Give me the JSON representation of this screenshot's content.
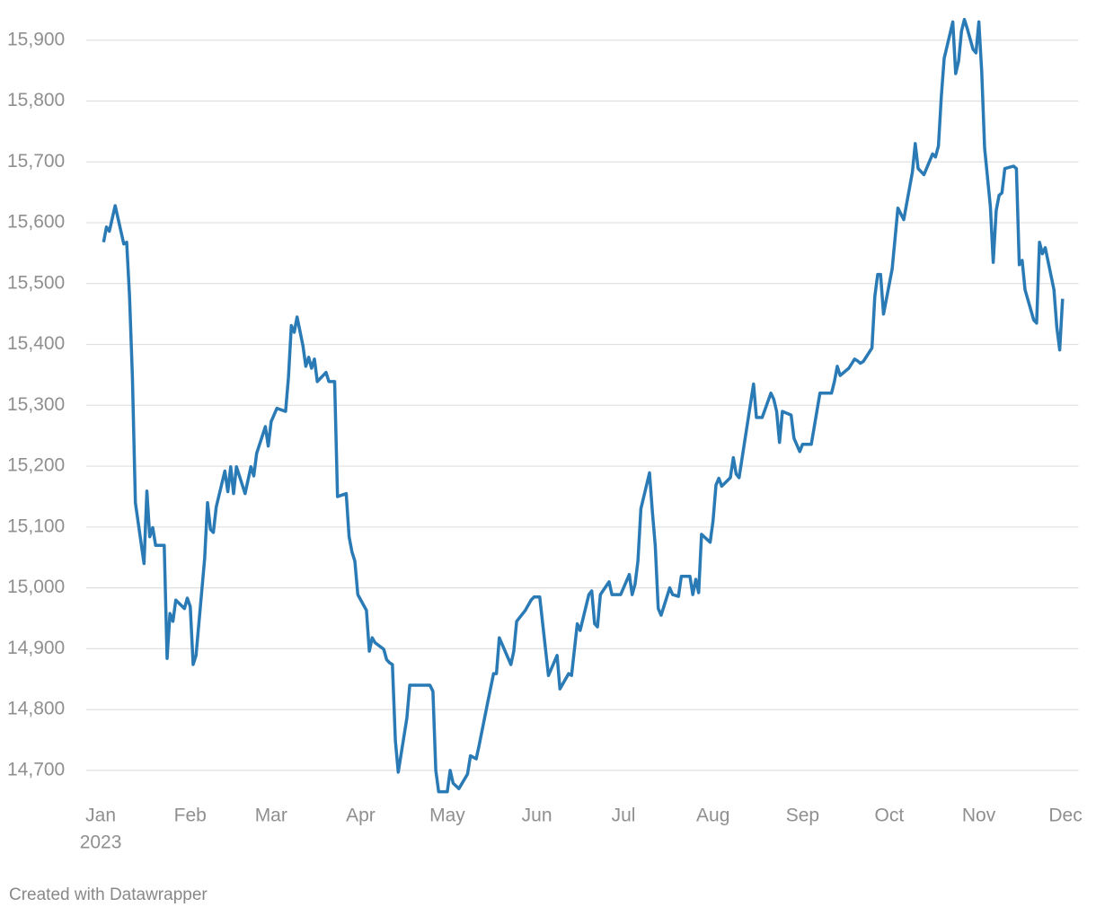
{
  "chart_data": {
    "type": "line",
    "x": [
      1,
      2,
      3,
      5,
      8,
      9,
      10,
      11,
      12,
      15,
      16,
      17,
      18,
      19,
      22,
      23,
      24,
      25,
      26,
      29,
      30,
      31,
      32,
      33,
      36,
      37,
      38,
      39,
      40,
      43,
      44,
      45,
      46,
      47,
      50,
      52,
      53,
      54,
      57,
      58,
      59,
      61,
      64,
      65,
      66,
      67,
      68,
      70,
      71,
      72,
      73,
      74,
      75,
      78,
      79,
      81,
      82,
      85,
      86,
      87,
      88,
      89,
      92,
      93,
      94,
      95,
      98,
      99,
      100,
      101,
      102,
      103,
      106,
      107,
      114,
      115,
      116,
      117,
      120,
      121,
      122,
      124,
      127,
      128,
      130,
      131,
      134,
      136,
      137,
      138,
      142,
      143,
      144,
      147,
      149,
      150,
      152,
      155,
      158,
      159,
      162,
      163,
      165,
      166,
      169,
      170,
      171,
      172,
      173,
      176,
      177,
      180,
      183,
      184,
      185,
      186,
      187,
      190,
      191,
      192,
      193,
      194,
      197,
      198,
      200,
      201,
      204,
      205,
      206,
      207,
      208,
      211,
      212,
      213,
      214,
      215,
      218,
      219,
      220,
      221,
      226,
      227,
      229,
      232,
      233,
      234,
      235,
      236,
      239,
      240,
      242,
      243,
      246,
      249,
      253,
      254,
      255,
      256,
      259,
      261,
      262,
      263,
      264,
      267,
      268,
      269,
      270,
      271,
      274,
      276,
      278,
      281,
      282,
      283,
      285,
      288,
      289,
      290,
      291,
      292,
      295,
      296,
      297,
      298,
      299,
      300,
      302,
      303,
      304,
      305,
      306,
      308,
      309,
      310,
      311,
      312,
      313,
      316,
      317,
      318,
      319,
      320,
      323,
      324,
      325,
      326,
      327,
      330,
      331,
      332,
      333
    ],
    "series": [
      {
        "color": "#2a7ab5",
        "values": [
          15568,
          15593,
          15586,
          15628,
          15565,
          15568,
          15479,
          15346,
          15140,
          15040,
          15159,
          15084,
          15099,
          15070,
          15070,
          14884,
          14958,
          14945,
          14980,
          14966,
          14983,
          14969,
          14874,
          14889,
          15048,
          15140,
          15096,
          15091,
          15133,
          15192,
          15158,
          15199,
          15155,
          15199,
          15155,
          15199,
          15184,
          15221,
          15265,
          15233,
          15273,
          15295,
          15290,
          15346,
          15431,
          15420,
          15445,
          15398,
          15364,
          15379,
          15361,
          15376,
          15339,
          15354,
          15339,
          15339,
          15150,
          15155,
          15084,
          15059,
          15044,
          14989,
          14963,
          14896,
          14918,
          14910,
          14899,
          14882,
          14877,
          14874,
          14749,
          14697,
          14786,
          14840,
          14840,
          14830,
          14700,
          14665,
          14665,
          14700,
          14679,
          14670,
          14694,
          14724,
          14719,
          14741,
          14812,
          14859,
          14859,
          14918,
          14874,
          14896,
          14945,
          14963,
          14980,
          14985,
          14985,
          14856,
          14889,
          14834,
          14859,
          14856,
          14941,
          14930,
          14989,
          14995,
          14941,
          14936,
          14989,
          15010,
          14989,
          14989,
          15022,
          14989,
          15006,
          15044,
          15130,
          15189,
          15125,
          15069,
          14966,
          14955,
          15000,
          14989,
          14986,
          15019,
          15019,
          14989,
          15014,
          14992,
          15088,
          15075,
          15110,
          15169,
          15180,
          15167,
          15181,
          15214,
          15187,
          15181,
          15335,
          15280,
          15280,
          15320,
          15310,
          15290,
          15239,
          15290,
          15284,
          15246,
          15224,
          15236,
          15236,
          15320,
          15320,
          15339,
          15364,
          15349,
          15361,
          15376,
          15373,
          15369,
          15372,
          15394,
          15479,
          15515,
          15515,
          15450,
          15524,
          15624,
          15605,
          15683,
          15730,
          15689,
          15679,
          15713,
          15708,
          15726,
          15807,
          15870,
          15930,
          15845,
          15866,
          15915,
          15934,
          15919,
          15885,
          15879,
          15930,
          15848,
          15723,
          15627,
          15535,
          15620,
          15645,
          15649,
          15689,
          15693,
          15689,
          15531,
          15538,
          15490,
          15440,
          15435,
          15568,
          15549,
          15559,
          15490,
          15428,
          15391,
          15475
        ]
      }
    ],
    "xlim": [
      -5,
      338.5
    ],
    "xticks": [
      {
        "value": 0,
        "label": "Jan"
      },
      {
        "value": 31,
        "label": "Feb"
      },
      {
        "value": 59,
        "label": "Mar"
      },
      {
        "value": 90,
        "label": "Apr"
      },
      {
        "value": 120,
        "label": "May"
      },
      {
        "value": 151,
        "label": "Jun"
      },
      {
        "value": 181,
        "label": "Jul"
      },
      {
        "value": 212,
        "label": "Aug"
      },
      {
        "value": 243,
        "label": "Sep"
      },
      {
        "value": 273,
        "label": "Oct"
      },
      {
        "value": 304,
        "label": "Nov"
      },
      {
        "value": 334,
        "label": "Dec"
      }
    ],
    "year_label": "2023",
    "ylim": [
      14660,
      15935
    ],
    "yticks": [
      {
        "value": 14700,
        "label": "14,700"
      },
      {
        "value": 14800,
        "label": "14,800"
      },
      {
        "value": 14900,
        "label": "14,900"
      },
      {
        "value": 15000,
        "label": "15,000"
      },
      {
        "value": 15100,
        "label": "15,100"
      },
      {
        "value": 15200,
        "label": "15,200"
      },
      {
        "value": 15300,
        "label": "15,300"
      },
      {
        "value": 15400,
        "label": "15,400"
      },
      {
        "value": 15500,
        "label": "15,500"
      },
      {
        "value": 15600,
        "label": "15,600"
      },
      {
        "value": 15700,
        "label": "15,700"
      },
      {
        "value": 15800,
        "label": "15,800"
      },
      {
        "value": 15900,
        "label": "15,900"
      }
    ],
    "grid": true
  },
  "footer": {
    "credit": "Created with Datawrapper"
  }
}
